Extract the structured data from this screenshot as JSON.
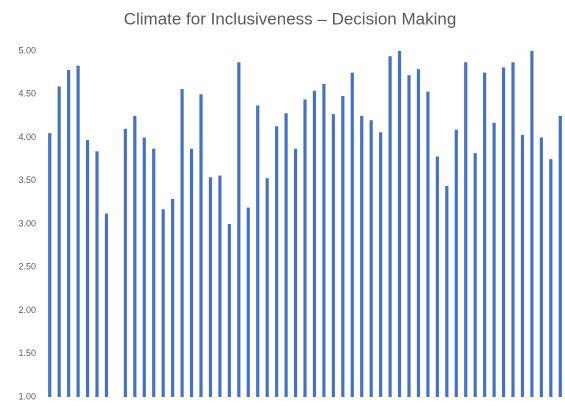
{
  "chart_data": {
    "type": "bar",
    "title": "Climate for Inclusiveness – Decision Making",
    "categories": [
      null,
      null,
      null,
      null,
      null,
      null,
      null,
      null,
      null,
      null,
      null,
      null,
      null,
      null,
      null,
      null,
      null,
      null,
      null,
      null,
      null,
      null,
      null,
      null,
      null,
      null,
      null,
      null,
      null,
      null,
      null,
      null,
      null,
      null,
      null,
      null,
      null,
      null,
      null,
      null,
      null,
      null,
      null,
      null,
      null,
      null,
      null,
      null,
      null,
      null,
      null,
      null,
      null,
      null,
      null
    ],
    "values": [
      4.05,
      4.59,
      4.78,
      4.83,
      3.97,
      3.84,
      3.12,
      null,
      4.1,
      4.25,
      4.0,
      3.87,
      3.17,
      3.29,
      4.56,
      3.87,
      4.5,
      3.54,
      3.56,
      3.0,
      4.87,
      3.19,
      4.37,
      3.53,
      4.13,
      4.28,
      3.87,
      4.44,
      4.54,
      4.62,
      4.27,
      4.48,
      4.75,
      4.25,
      4.2,
      4.06,
      4.94,
      5.0,
      4.72,
      4.79,
      4.53,
      3.78,
      3.44,
      4.09,
      4.87,
      3.82,
      4.75,
      4.17,
      4.81,
      4.87,
      4.03,
      5.0,
      4.0,
      3.75,
      4.25
    ],
    "color": "#4472c4",
    "ylim": [
      1,
      5
    ],
    "yticks": [
      {
        "value": 1,
        "label": "1.00"
      },
      {
        "value": 1.5,
        "label": "1.50"
      },
      {
        "value": 2,
        "label": "2.00"
      },
      {
        "value": 2.5,
        "label": "2.50"
      },
      {
        "value": 3,
        "label": "3.00"
      },
      {
        "value": 3.5,
        "label": "3.50"
      },
      {
        "value": 4,
        "label": "4.00"
      },
      {
        "value": 4.5,
        "label": "4.50"
      },
      {
        "value": 5,
        "label": "5.00"
      }
    ],
    "grid": false
  }
}
